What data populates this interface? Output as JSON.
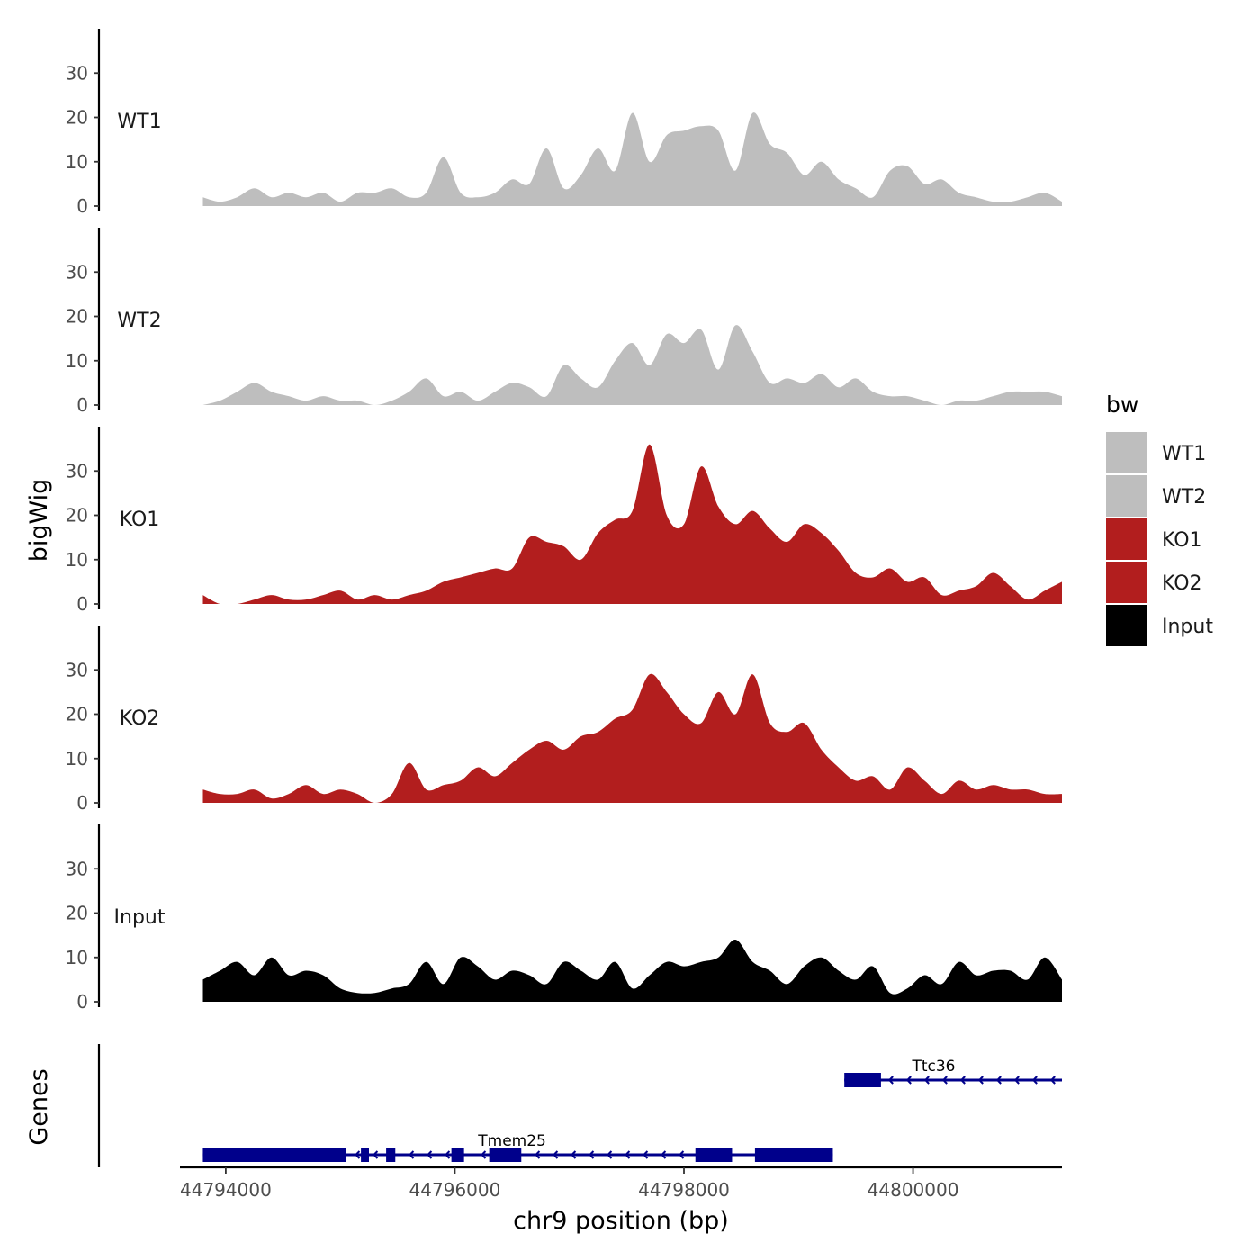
{
  "chart_data": {
    "type": "area",
    "description_labels": {
      "ylabel": "bigWig",
      "genes_label": "Genes",
      "xlabel": "chr9 position (bp)"
    },
    "xlim": [
      44793600,
      44801300
    ],
    "x_ticks": [
      44794000,
      44796000,
      44798000,
      44800000
    ],
    "x_tick_labels": [
      "44794000",
      "44796000",
      "44798000",
      "44800000"
    ],
    "ylim": [
      0,
      40
    ],
    "y_ticks": [
      0,
      10,
      20,
      30
    ],
    "y_tick_labels": [
      "0",
      "10",
      "20",
      "30"
    ],
    "x": [
      44793800,
      44793950,
      44794100,
      44794250,
      44794400,
      44794550,
      44794700,
      44794850,
      44795000,
      44795150,
      44795300,
      44795450,
      44795600,
      44795750,
      44795900,
      44796050,
      44796200,
      44796350,
      44796500,
      44796650,
      44796800,
      44796950,
      44797100,
      44797250,
      44797400,
      44797550,
      44797700,
      44797850,
      44798000,
      44798150,
      44798300,
      44798450,
      44798600,
      44798750,
      44798900,
      44799050,
      44799200,
      44799350,
      44799500,
      44799650,
      44799800,
      44799950,
      44800100,
      44800250,
      44800400,
      44800550,
      44800700,
      44800850,
      44801000,
      44801150,
      44801300
    ],
    "series": [
      {
        "name": "WT1",
        "color": "#bebebe",
        "values": [
          2,
          1,
          2,
          4,
          2,
          3,
          2,
          3,
          1,
          3,
          3,
          4,
          2,
          3,
          11,
          3,
          2,
          3,
          6,
          5,
          13,
          4,
          7,
          13,
          8,
          21,
          10,
          16,
          17,
          18,
          17,
          8,
          21,
          14,
          12,
          7,
          10,
          6,
          4,
          2,
          8,
          9,
          5,
          6,
          3,
          2,
          1,
          1,
          2,
          3,
          1
        ]
      },
      {
        "name": "WT2",
        "color": "#bebebe",
        "values": [
          0,
          1,
          3,
          5,
          3,
          2,
          1,
          2,
          1,
          1,
          0,
          1,
          3,
          6,
          2,
          3,
          1,
          3,
          5,
          4,
          2,
          9,
          6,
          4,
          10,
          14,
          9,
          16,
          14,
          17,
          8,
          18,
          12,
          5,
          6,
          5,
          7,
          4,
          6,
          3,
          2,
          2,
          1,
          0,
          1,
          1,
          2,
          3,
          3,
          3,
          2
        ]
      },
      {
        "name": "KO1",
        "color": "#b21e1e",
        "values": [
          2,
          0,
          0,
          1,
          2,
          1,
          1,
          2,
          3,
          1,
          2,
          1,
          2,
          3,
          5,
          6,
          7,
          8,
          8,
          15,
          14,
          13,
          10,
          16,
          19,
          21,
          36,
          20,
          18,
          31,
          22,
          18,
          21,
          17,
          14,
          18,
          16,
          12,
          7,
          6,
          8,
          5,
          6,
          2,
          3,
          4,
          7,
          4,
          1,
          3,
          5
        ]
      },
      {
        "name": "KO2",
        "color": "#b21e1e",
        "values": [
          3,
          2,
          2,
          3,
          1,
          2,
          4,
          2,
          3,
          2,
          0,
          2,
          9,
          3,
          4,
          5,
          8,
          6,
          9,
          12,
          14,
          12,
          15,
          16,
          19,
          21,
          29,
          25,
          20,
          18,
          25,
          20,
          29,
          18,
          16,
          18,
          12,
          8,
          5,
          6,
          3,
          8,
          5,
          2,
          5,
          3,
          4,
          3,
          3,
          2,
          2
        ]
      },
      {
        "name": "Input",
        "color": "#000000",
        "values": [
          5,
          7,
          9,
          6,
          10,
          6,
          7,
          6,
          3,
          2,
          2,
          3,
          4,
          9,
          4,
          10,
          8,
          5,
          7,
          6,
          4,
          9,
          7,
          5,
          9,
          3,
          6,
          9,
          8,
          9,
          10,
          14,
          9,
          7,
          4,
          8,
          10,
          7,
          5,
          8,
          2,
          3,
          6,
          4,
          9,
          6,
          7,
          7,
          5,
          10,
          5
        ]
      }
    ],
    "track_labels": [
      "WT1",
      "WT2",
      "KO1",
      "KO2",
      "Input"
    ],
    "genes": [
      {
        "name": "Ttc36",
        "strand": "-",
        "color": "#00008b",
        "start": 44799400,
        "end": 44801300,
        "exons": [
          [
            44799400,
            44799720
          ]
        ],
        "label_pos": 44800180
      },
      {
        "name": "Tmem25",
        "strand": "-",
        "color": "#00008b",
        "start": 44793800,
        "end": 44799300,
        "exons": [
          [
            44793800,
            44795050
          ],
          [
            44795180,
            44795250
          ],
          [
            44795400,
            44795480
          ],
          [
            44795970,
            44796080
          ],
          [
            44796300,
            44796580
          ],
          [
            44798100,
            44798420
          ],
          [
            44798620,
            44799300
          ]
        ],
        "label_pos": 44796500
      }
    ],
    "legend": {
      "title": "bw",
      "position": "right",
      "entries": [
        {
          "label": "WT1",
          "color": "#bebebe"
        },
        {
          "label": "WT2",
          "color": "#bebebe"
        },
        {
          "label": "KO1",
          "color": "#b21e1e"
        },
        {
          "label": "KO2",
          "color": "#b21e1e"
        },
        {
          "label": "Input",
          "color": "#000000"
        }
      ]
    }
  }
}
